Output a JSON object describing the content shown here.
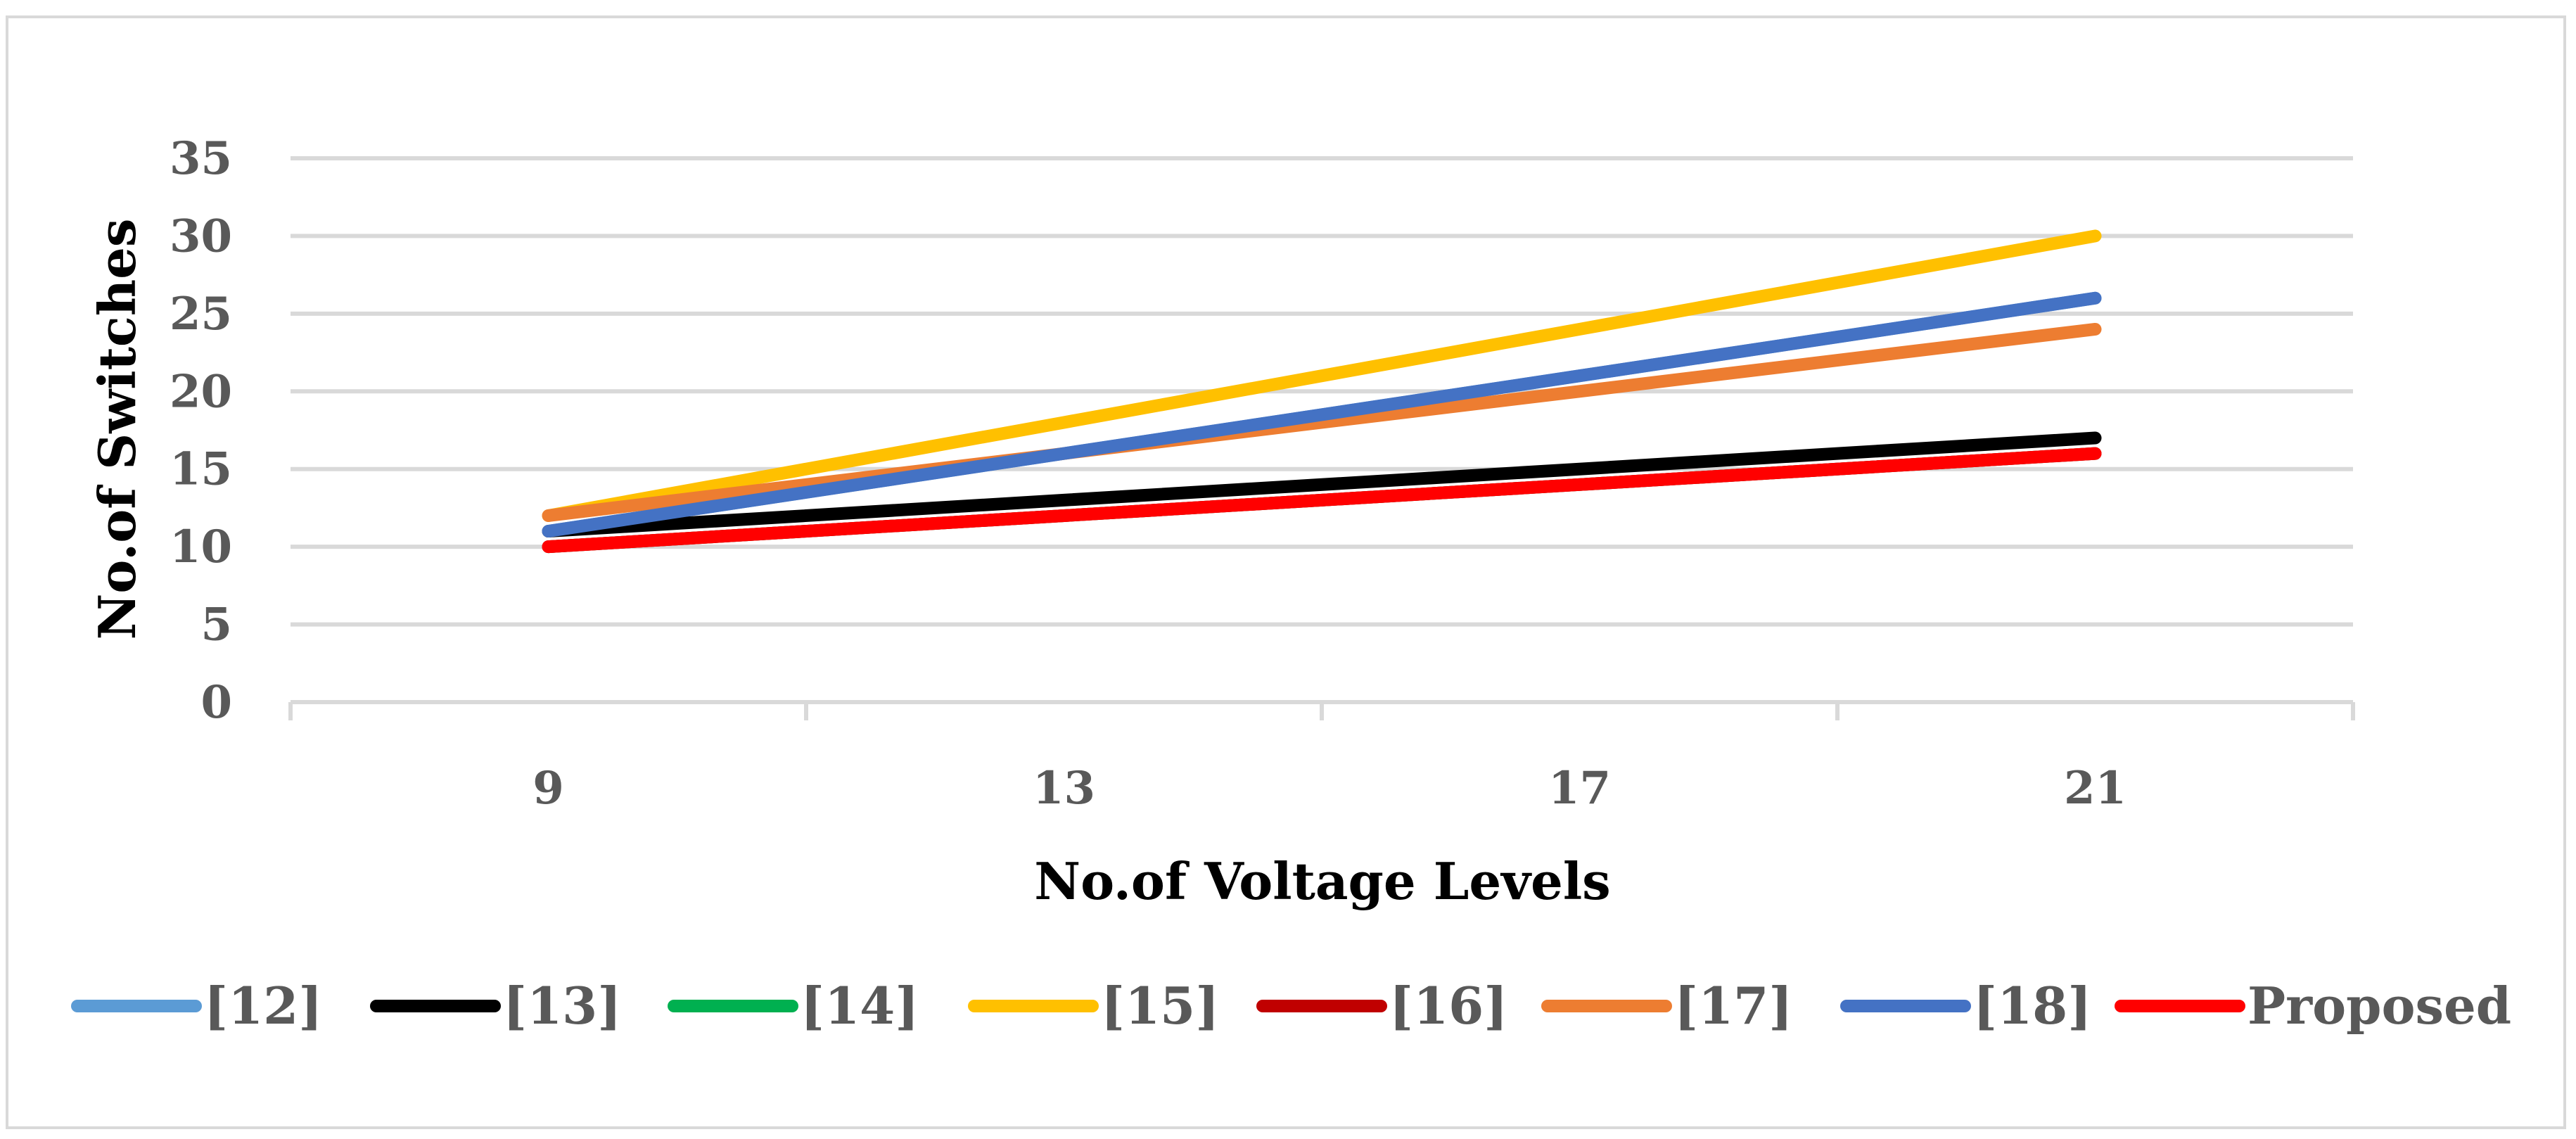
{
  "chart_data": {
    "type": "line",
    "title": "",
    "xlabel": "No.of Voltage Levels",
    "ylabel": "No.of Switches",
    "x": [
      9,
      13,
      17,
      21
    ],
    "x_tick_labels": [
      "9",
      "13",
      "17",
      "21"
    ],
    "y_tick_labels": [
      "0",
      "5",
      "10",
      "15",
      "20",
      "25",
      "30",
      "35"
    ],
    "ylim": [
      0,
      35
    ],
    "grid": true,
    "legend_position": "bottom",
    "series": [
      {
        "name": "[12]",
        "color": "#5B9BD5",
        "values": [
          11,
          16,
          21,
          26
        ]
      },
      {
        "name": "[13]",
        "color": "#000000",
        "values": [
          11,
          13,
          15,
          17
        ]
      },
      {
        "name": "[14]",
        "color": "#00B050",
        "values": [
          10,
          12,
          14,
          16
        ]
      },
      {
        "name": "[15]",
        "color": "#FFC000",
        "values": [
          12,
          18,
          24,
          30
        ]
      },
      {
        "name": "[16]",
        "color": "#C00000",
        "values": [
          10,
          12,
          14,
          16
        ]
      },
      {
        "name": "[17]",
        "color": "#ED7D31",
        "values": [
          12,
          16,
          20,
          24
        ]
      },
      {
        "name": "[18]",
        "color": "#4472C4",
        "values": [
          11,
          16,
          21,
          26
        ]
      },
      {
        "name": "Proposed",
        "color": "#FF0000",
        "values": [
          10,
          12,
          14,
          16
        ]
      }
    ]
  }
}
